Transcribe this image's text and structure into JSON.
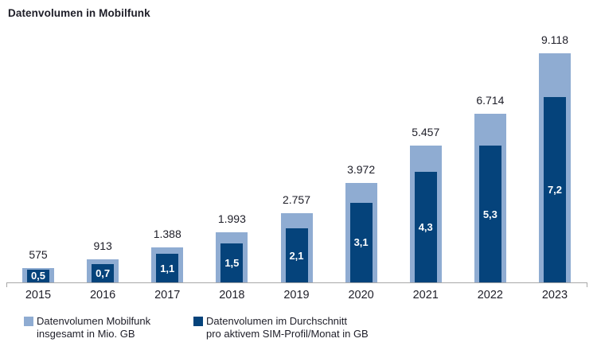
{
  "title": "Datenvolumen in Mobilfunk",
  "colors": {
    "total_bar": "#8facd2",
    "per_sim_bar": "#05437b",
    "inside_label": "#ffffff",
    "text": "#1e1e28",
    "axis": "#a8a8a8",
    "background": "#ffffff"
  },
  "chart_data": {
    "type": "bar",
    "title": "Datenvolumen in Mobilfunk",
    "categories": [
      "2015",
      "2016",
      "2017",
      "2018",
      "2019",
      "2020",
      "2021",
      "2022",
      "2023"
    ],
    "series": [
      {
        "name": "Datenvolumen Mobilfunk insgesamt in Mio. GB",
        "values": [
          575,
          913,
          1388,
          1993,
          2757,
          3972,
          5457,
          6714,
          9118
        ],
        "labels": [
          "575",
          "913",
          "1.388",
          "1.993",
          "2.757",
          "3.972",
          "5.457",
          "6.714",
          "9.118"
        ],
        "color": "#8facd2"
      },
      {
        "name": "Datenvolumen im Durchschnitt pro aktivem SIM-Profil/Monat in GB",
        "values": [
          0.5,
          0.7,
          1.1,
          1.5,
          2.1,
          3.1,
          4.3,
          5.3,
          7.2
        ],
        "labels": [
          "0,5",
          "0,7",
          "1,1",
          "1,5",
          "2,1",
          "3,1",
          "4,3",
          "5,3",
          "7,2"
        ],
        "color": "#05437b"
      }
    ],
    "ylim_total": [
      0,
      9118
    ],
    "ylim_per_sim": [
      0,
      7.2
    ],
    "grid": false,
    "value_labels": "outside-top for totals, white inside bars for per-SIM values",
    "legend_position": "bottom-left",
    "bar_style": "overlapped: narrow dark bar drawn on top of wider light bar, both from baseline"
  },
  "legend": {
    "items": [
      {
        "line1": "Datenvolumen Mobilfunk",
        "line2": "insgesamt in Mio. GB",
        "color": "#8facd2"
      },
      {
        "line1": "Datenvolumen im Durchschnitt",
        "line2": "pro aktivem SIM-Profil/Monat in GB",
        "color": "#05437b"
      }
    ]
  }
}
